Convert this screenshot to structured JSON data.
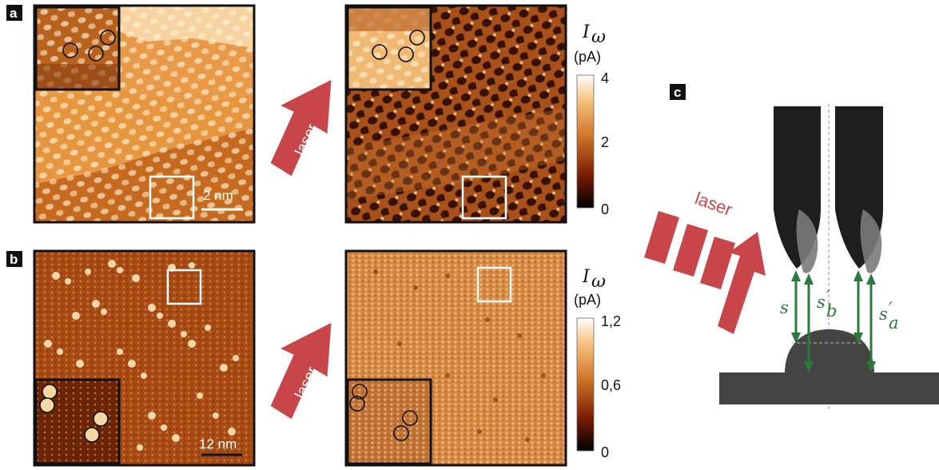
{
  "panels": {
    "a": {
      "label": "a",
      "scale_bar": "2 nm",
      "arrow_text": "laser"
    },
    "b": {
      "label": "b",
      "scale_bar": "12 nm",
      "arrow_text": "laser"
    },
    "c": {
      "label": "c",
      "laser_text": "laser"
    }
  },
  "colorbars": {
    "a": {
      "title_symbol": "I",
      "title_sub": "ω",
      "unit": "(pA)",
      "ticks": [
        "4",
        "2",
        "0"
      ]
    },
    "b": {
      "title_symbol": "I",
      "title_sub": "ω",
      "unit": "(pA)",
      "ticks": [
        "1,2",
        "0,6",
        "0"
      ]
    }
  },
  "diagram_labels": {
    "s": "s",
    "s_b": "s",
    "s_b_sub": "b",
    "s_a": "s",
    "s_a_sub": "a",
    "prime": "′"
  },
  "colors": {
    "stm_light": "#f7c77f",
    "stm_mid": "#d9852f",
    "stm_dark": "#7a2e08",
    "laser_red": "#c8454a",
    "tip_dark": "#1e1e1e",
    "substrate": "#444444",
    "arrow_green": "#2a7a3c"
  }
}
